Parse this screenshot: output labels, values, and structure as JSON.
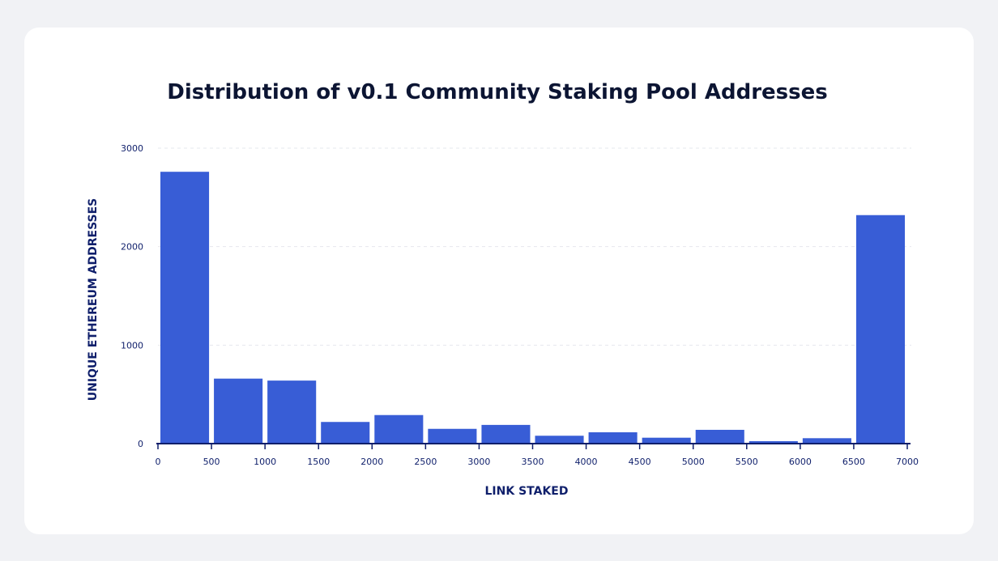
{
  "chart_data": {
    "type": "bar",
    "title": "Distribution of v0.1 Community Staking Pool Addresses",
    "xlabel": "LINK STAKED",
    "ylabel": "UNIQUE ETHEREUM ADDRESSES",
    "x_ticks": [
      "0",
      "500",
      "1000",
      "1500",
      "2000",
      "2500",
      "3000",
      "3500",
      "4000",
      "4500",
      "5000",
      "5500",
      "6000",
      "6500",
      "7000"
    ],
    "y_ticks": [
      "0",
      "1000",
      "2000",
      "3000"
    ],
    "xlim": [
      0,
      7000
    ],
    "ylim": [
      0,
      3000
    ],
    "bins": [
      {
        "start": 0,
        "end": 500,
        "value": 2760
      },
      {
        "start": 500,
        "end": 1000,
        "value": 660
      },
      {
        "start": 1000,
        "end": 1500,
        "value": 640
      },
      {
        "start": 1500,
        "end": 2000,
        "value": 220
      },
      {
        "start": 2000,
        "end": 2500,
        "value": 290
      },
      {
        "start": 2500,
        "end": 3000,
        "value": 150
      },
      {
        "start": 3000,
        "end": 3500,
        "value": 190
      },
      {
        "start": 3500,
        "end": 4000,
        "value": 80
      },
      {
        "start": 4000,
        "end": 4500,
        "value": 115
      },
      {
        "start": 4500,
        "end": 5000,
        "value": 60
      },
      {
        "start": 5000,
        "end": 5500,
        "value": 140
      },
      {
        "start": 5500,
        "end": 6000,
        "value": 25
      },
      {
        "start": 6000,
        "end": 6500,
        "value": 55
      },
      {
        "start": 6500,
        "end": 7000,
        "value": 2320
      }
    ],
    "grid": true,
    "bar_color": "#385dd6",
    "axis_color": "#0f1f6b",
    "grid_color": "#e6e8ee"
  }
}
